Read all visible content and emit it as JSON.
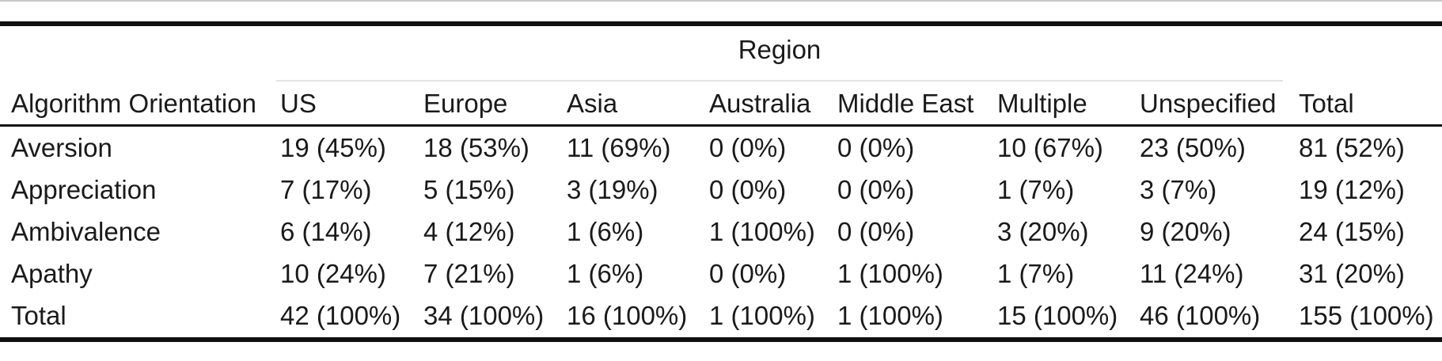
{
  "table": {
    "spanner_label": "Region",
    "columns": [
      "Algorithm Orientation",
      "US",
      "Europe",
      "Asia",
      "Australia",
      "Middle East",
      "Multiple",
      "Unspecified",
      "Total"
    ],
    "rows": [
      [
        "Aversion",
        "19 (45%)",
        "18 (53%)",
        "11 (69%)",
        "0 (0%)",
        "0 (0%)",
        "10 (67%)",
        "23 (50%)",
        "81 (52%)"
      ],
      [
        "Appreciation",
        "7 (17%)",
        "5 (15%)",
        "3 (19%)",
        "0 (0%)",
        "0 (0%)",
        "1 (7%)",
        "3 (7%)",
        "19 (12%)"
      ],
      [
        "Ambivalence",
        "6 (14%)",
        "4 (12%)",
        "1 (6%)",
        "1 (100%)",
        "0 (0%)",
        "3 (20%)",
        "9 (20%)",
        "24 (15%)"
      ],
      [
        "Apathy",
        "10 (24%)",
        "7 (21%)",
        "1 (6%)",
        "0 (0%)",
        "1 (100%)",
        "1 (7%)",
        "11 (24%)",
        "31 (20%)"
      ],
      [
        "Total",
        "42 (100%)",
        "34 (100%)",
        "16 (100%)",
        "1 (100%)",
        "1 (100%)",
        "15 (100%)",
        "46 (100%)",
        "155 (100%)"
      ]
    ]
  }
}
